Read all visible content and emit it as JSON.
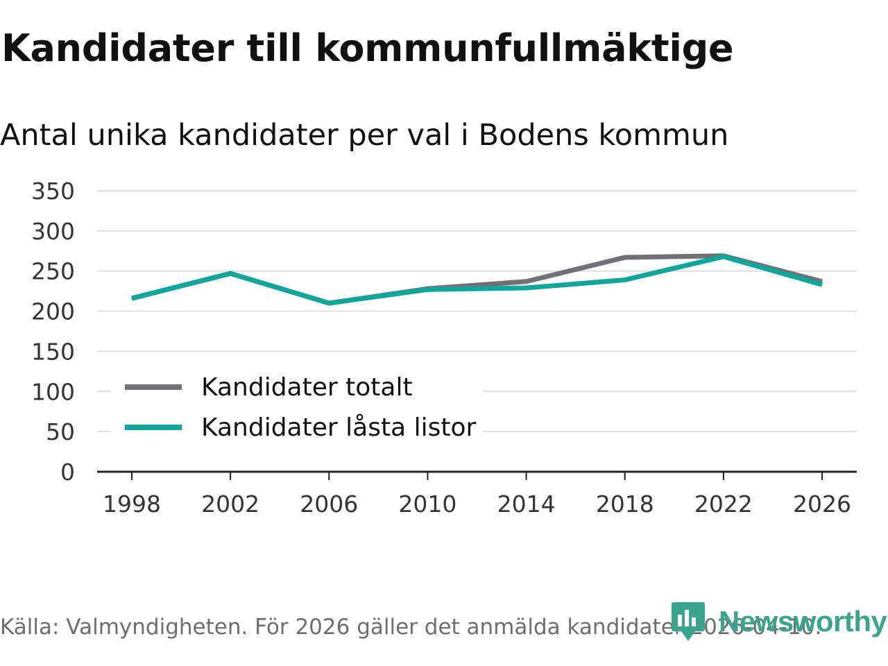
{
  "title": "Kandidater till kommunfullmäktige",
  "subtitle": "Antal unika kandidater per val i Bodens kommun",
  "source": "Källa: Valmyndigheten. För 2026 gäller det anmälda kandidater 2026-04-10.",
  "brand": {
    "name": "Newsworthy",
    "logo_icon": "bar-chart-badge-icon",
    "color": "#3aa58c"
  },
  "chart_data": {
    "type": "line",
    "title": "Kandidater till kommunfullmäktige",
    "subtitle": "Antal unika kandidater per val i Bodens kommun",
    "xlabel": "",
    "ylabel": "",
    "x": [
      1998,
      2002,
      2006,
      2010,
      2014,
      2018,
      2022,
      2026
    ],
    "x_tick_labels": [
      "1998",
      "2002",
      "2006",
      "2010",
      "2014",
      "2018",
      "2022",
      "2026"
    ],
    "y_ticks": [
      0,
      50,
      100,
      150,
      200,
      250,
      300,
      350
    ],
    "y_tick_labels": [
      "0",
      "50",
      "100",
      "150",
      "200",
      "250",
      "300",
      "350"
    ],
    "ylim": [
      0,
      350
    ],
    "grid": "horizontal",
    "legend_position": "lower-left",
    "series": [
      {
        "name": "Kandidater totalt",
        "color": "#707075",
        "values": [
          216,
          247,
          210,
          228,
          237,
          267,
          269,
          237
        ]
      },
      {
        "name": "Kandidater låsta listor",
        "color": "#12a59a",
        "values": [
          216,
          247,
          210,
          227,
          229,
          239,
          268,
          233
        ]
      }
    ]
  }
}
